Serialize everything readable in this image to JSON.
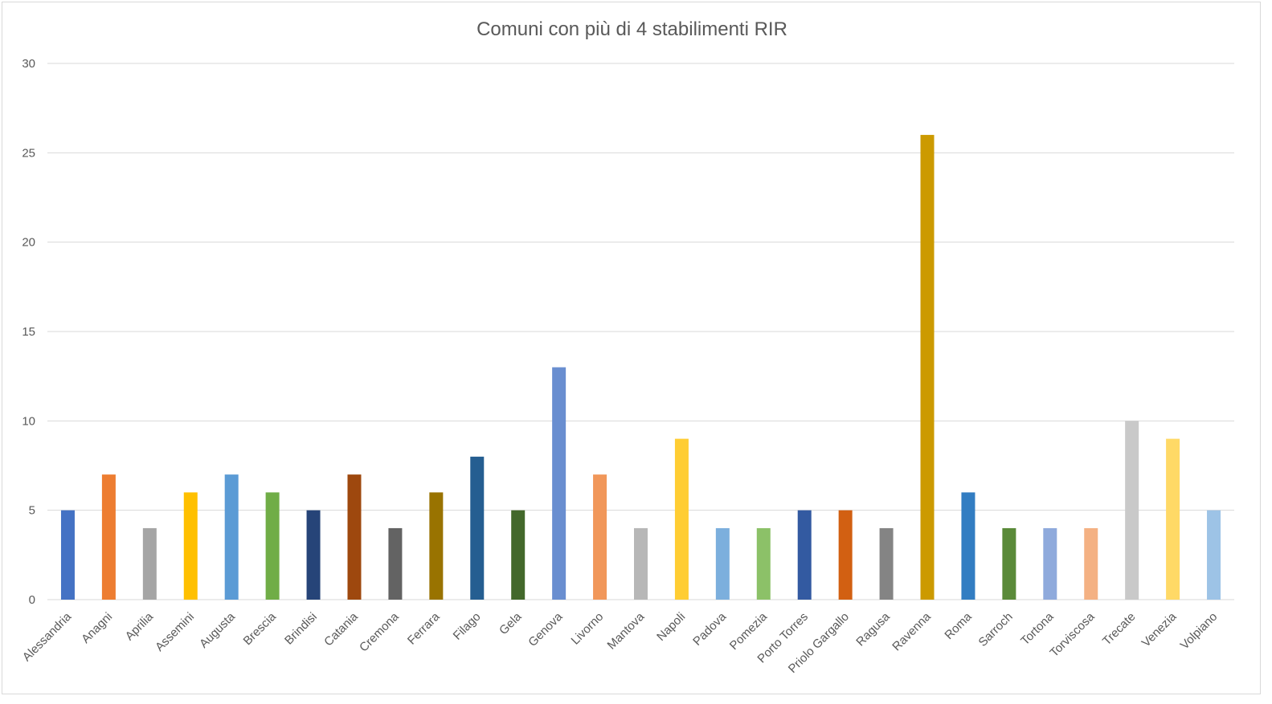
{
  "chart_data": {
    "type": "bar",
    "title": "Comuni con più di 4 stabilimenti RIR",
    "xlabel": "",
    "ylabel": "",
    "ylim": [
      0,
      30
    ],
    "yticks": [
      0,
      5,
      10,
      15,
      20,
      25,
      30
    ],
    "grid": true,
    "legend": "none",
    "categories": [
      "Alessandria",
      "Anagni",
      "Aprilia",
      "Assemini",
      "Augusta",
      "Brescia",
      "Brindisi",
      "Catania",
      "Cremona",
      "Ferrara",
      "Filago",
      "Gela",
      "Genova",
      "Livorno",
      "Mantova",
      "Napoli",
      "Padova",
      "Pomezia",
      "Porto Torres",
      "Priolo Gargallo",
      "Ragusa",
      "Ravenna",
      "Roma",
      "Sarroch",
      "Tortona",
      "Torviscosa",
      "Trecate",
      "Venezia",
      "Volpiano"
    ],
    "values": [
      5,
      7,
      4,
      6,
      7,
      6,
      5,
      7,
      4,
      6,
      8,
      5,
      13,
      7,
      4,
      9,
      4,
      4,
      5,
      5,
      4,
      26,
      6,
      4,
      4,
      4,
      10,
      9,
      5
    ],
    "colors": [
      "#4472C4",
      "#ED7D31",
      "#A5A5A5",
      "#FFC000",
      "#5B9BD5",
      "#70AD47",
      "#264478",
      "#9E480E",
      "#636363",
      "#997300",
      "#255E91",
      "#43682B",
      "#698ED0",
      "#F1975A",
      "#B7B7B7",
      "#FFCD33",
      "#7CAFDD",
      "#8CC168",
      "#335AA1",
      "#D26012",
      "#848484",
      "#CC9A00",
      "#327DC2",
      "#5A8A39",
      "#8FAADC",
      "#F4B183",
      "#C9C9C9",
      "#FFD966",
      "#9DC3E6"
    ]
  }
}
